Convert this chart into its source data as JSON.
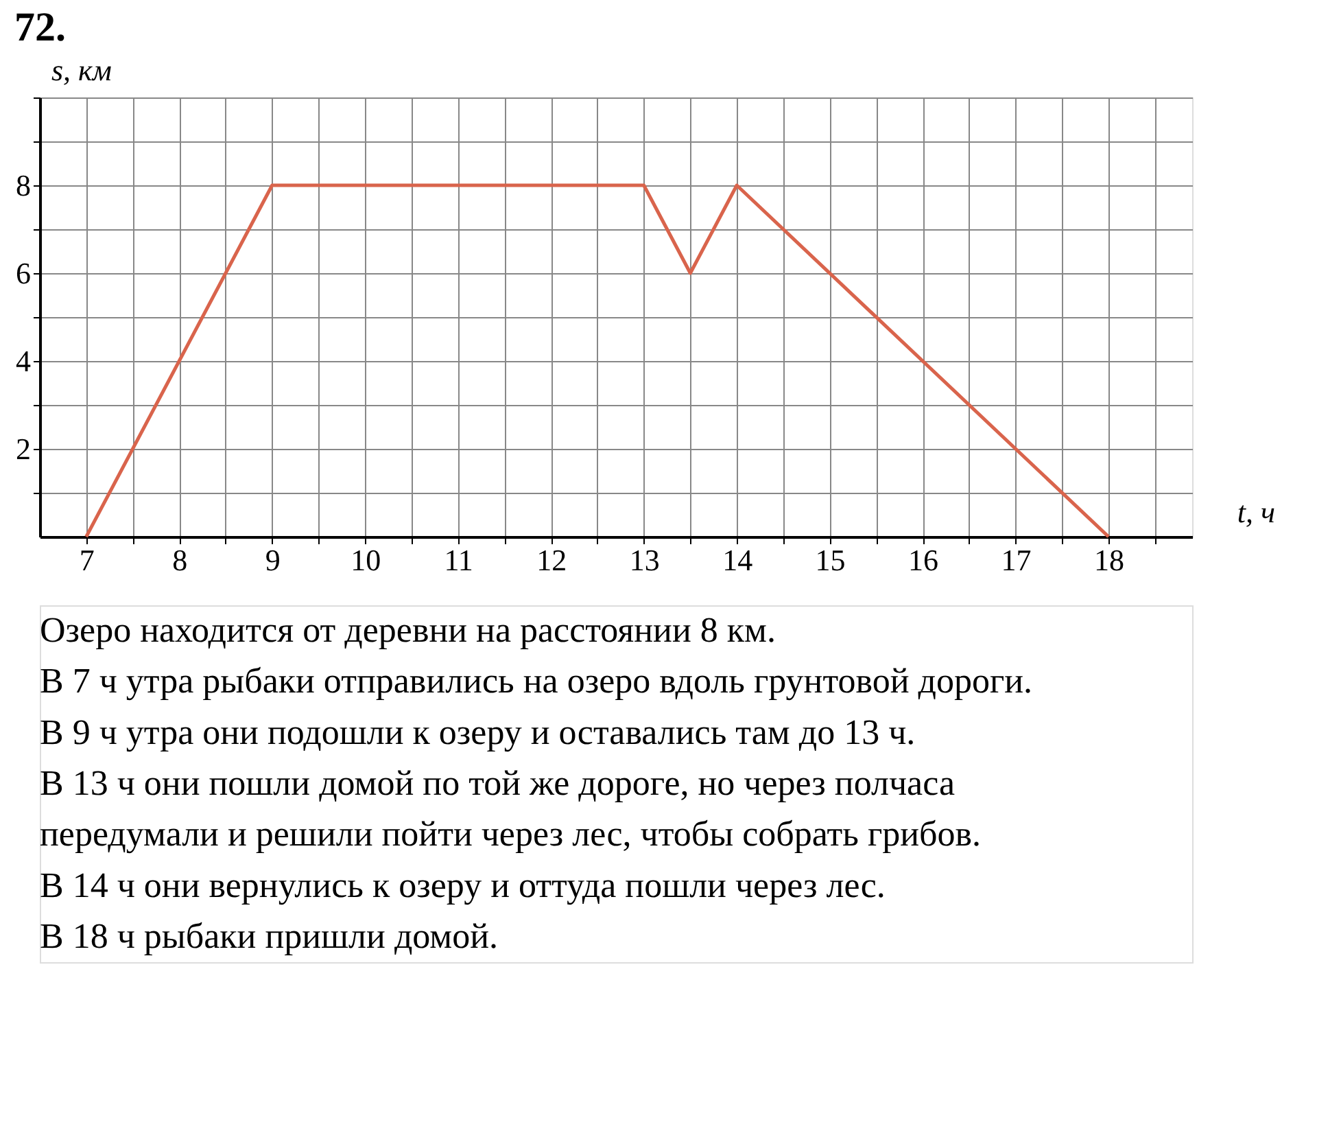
{
  "chart_data": {
    "type": "line",
    "title": "72.",
    "xlabel": "t, ч",
    "ylabel": "s, км",
    "x": [
      7,
      9,
      13,
      13.5,
      14,
      18
    ],
    "series": [
      {
        "color": "#d9644c",
        "values": [
          0,
          8,
          8,
          6,
          8,
          0
        ]
      }
    ],
    "xlim": [
      6.5,
      18.9
    ],
    "ylim": [
      0,
      10
    ],
    "xticks": [
      7,
      {
        "value": 7.5,
        "label": null
      },
      8,
      {
        "value": 8.5,
        "label": null
      },
      9,
      {
        "value": 9.5,
        "label": null
      },
      10,
      {
        "value": 10.5,
        "label": null
      },
      11,
      {
        "value": 11.5,
        "label": null
      },
      12,
      {
        "value": 12.5,
        "label": null
      },
      13,
      {
        "value": 13.5,
        "label": null
      },
      14,
      {
        "value": 14.5,
        "label": null
      },
      15,
      {
        "value": 15.5,
        "label": null
      },
      16,
      {
        "value": 16.5,
        "label": null
      },
      17,
      {
        "value": 17.5,
        "label": null
      },
      18,
      {
        "value": 18.5,
        "label": null
      }
    ],
    "yticks": [
      {
        "value": 1,
        "label": null
      },
      2,
      {
        "value": 3,
        "label": null
      },
      4,
      {
        "value": 5,
        "label": null
      },
      6,
      {
        "value": 7,
        "label": null
      },
      8,
      {
        "value": 9,
        "label": null
      },
      {
        "value": 10,
        "label": null
      }
    ],
    "grid": true,
    "marker": "none",
    "line_style": "solid",
    "annotations": [
      "Озеро находится от деревни на расстоянии 8 км.",
      "В 7 ч утра рыбаки отправились на озеро вдоль грунтовой дороги.",
      "В 9 ч утра они подошли к озеру и оставались там до 13 ч.",
      "В 13 ч они пошли домой по той же дороге, но через полчаса",
      "передумали и решили пойти через лес, чтобы собрать грибов.",
      "В 14 ч они вернулись к озеру и оттуда пошли через лес.",
      "В 18 ч рыбаки пришли домой."
    ]
  }
}
